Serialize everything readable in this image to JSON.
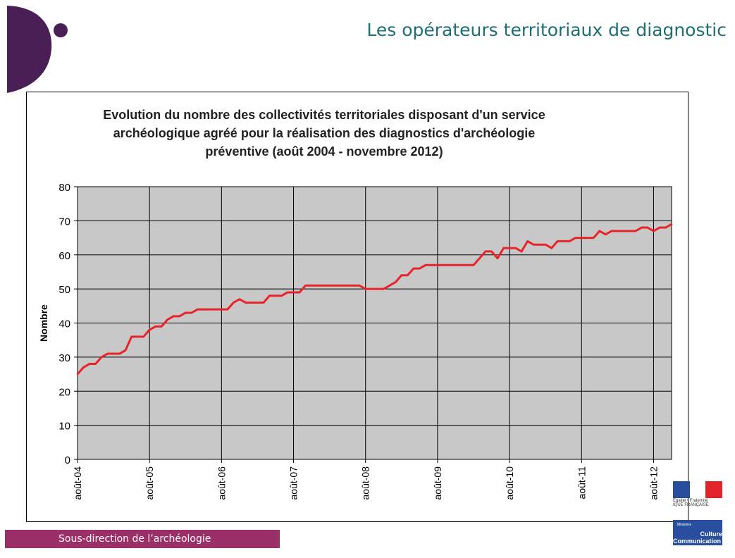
{
  "header": {
    "title": "Les opérateurs territoriaux de diagnostic"
  },
  "footer": {
    "label": "Sous-direction de l’archéologie"
  },
  "ministry": {
    "republic": "Égalité • Fraternité",
    "republic2": "IQUE FRANÇAISE",
    "ministere": "Ministère",
    "culture": "Culture",
    "communication": "Communication"
  },
  "colors": {
    "line": "#e8232a",
    "plot_bg": "#c8c8c8",
    "accent": "#4a1f55",
    "title": "#1f6e74",
    "footer": "#9b2f67"
  },
  "chart_data": {
    "type": "line",
    "title_lines": [
      "Evolution du nombre des collectivités territoriales disposant d'un service",
      "archéologique agréé pour la réalisation des diagnostics d'archéologie",
      "préventive (août 2004 - novembre 2012)"
    ],
    "xlabel": "",
    "ylabel": "Nombre",
    "ylim": [
      0,
      80
    ],
    "yticks": [
      0,
      10,
      20,
      30,
      40,
      50,
      60,
      70,
      80
    ],
    "x_start": "2004-08",
    "x_step": "month",
    "xticks": [
      "août-04",
      "août-05",
      "août-06",
      "août-07",
      "août-08",
      "août-09",
      "août-10",
      "août-11",
      "août-12"
    ],
    "grid": true,
    "series": [
      {
        "name": "Nombre",
        "values": [
          25,
          27,
          28,
          28,
          30,
          31,
          31,
          31,
          32,
          36,
          36,
          36,
          38,
          39,
          39,
          41,
          42,
          42,
          43,
          43,
          44,
          44,
          44,
          44,
          44,
          44,
          46,
          47,
          46,
          46,
          46,
          46,
          48,
          48,
          48,
          49,
          49,
          49,
          51,
          51,
          51,
          51,
          51,
          51,
          51,
          51,
          51,
          51,
          50,
          50,
          50,
          50,
          51,
          52,
          54,
          54,
          56,
          56,
          57,
          57,
          57,
          57,
          57,
          57,
          57,
          57,
          57,
          59,
          61,
          61,
          59,
          62,
          62,
          62,
          61,
          64,
          63,
          63,
          63,
          62,
          64,
          64,
          64,
          65,
          65,
          65,
          65,
          67,
          66,
          67,
          67,
          67,
          67,
          67,
          68,
          68,
          67,
          68,
          68,
          69
        ]
      }
    ]
  }
}
